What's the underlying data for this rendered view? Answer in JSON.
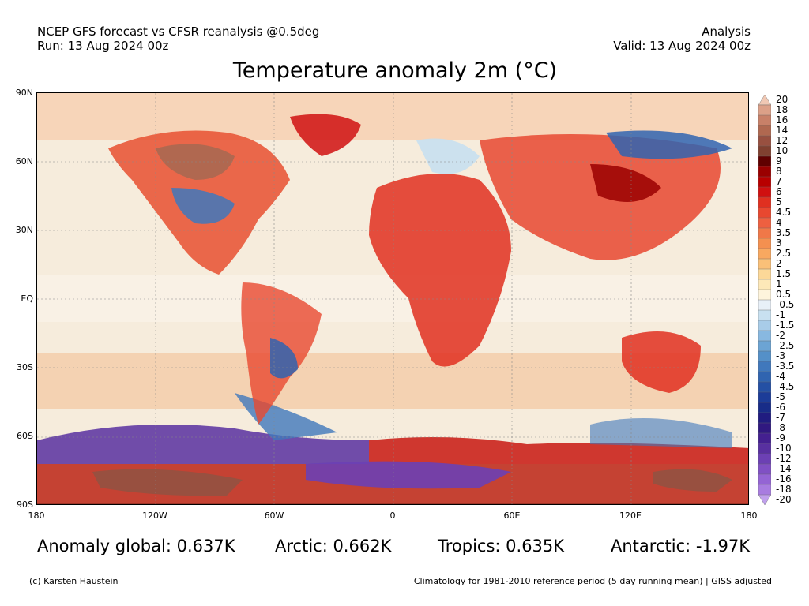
{
  "header": {
    "line1_left": "NCEP GFS forecast vs CFSR reanalysis @0.5deg",
    "line2_left": "Run: 13 Aug 2024 00z",
    "line1_right": "Analysis",
    "line2_right": "Valid: 13 Aug 2024 00z"
  },
  "title": "Temperature anomaly 2m (°C)",
  "map": {
    "lat_labels": [
      "90N",
      "60N",
      "30N",
      "EQ",
      "30S",
      "60S",
      "90S"
    ],
    "lon_labels": [
      "180",
      "120W",
      "60W",
      "0",
      "60E",
      "120E",
      "180"
    ]
  },
  "colorbar": {
    "labels": [
      "20",
      "18",
      "16",
      "14",
      "12",
      "10",
      "9",
      "8",
      "7",
      "6",
      "5",
      "4.5",
      "4",
      "3.5",
      "3",
      "2.5",
      "2",
      "1.5",
      "1",
      "0.5",
      "-0.5",
      "-1",
      "-1.5",
      "-2",
      "-2.5",
      "-3",
      "-3.5",
      "-4",
      "-4.5",
      "-5",
      "-6",
      "-7",
      "-8",
      "-9",
      "-10",
      "-12",
      "-14",
      "-16",
      "-18",
      "-20"
    ],
    "colors": [
      "#f0c8b4",
      "#dca088",
      "#c88068",
      "#b06850",
      "#985040",
      "#804030",
      "#600000",
      "#9a0000",
      "#b80000",
      "#d01010",
      "#e03020",
      "#e84830",
      "#ee6040",
      "#f07848",
      "#f49050",
      "#f8a860",
      "#fac078",
      "#fcd898",
      "#fde8b8",
      "#fef4dc",
      "#e8f0f8",
      "#c8e0f0",
      "#a8cce8",
      "#88b8e0",
      "#6ca4d4",
      "#5490c8",
      "#4078bc",
      "#3064b0",
      "#2450a4",
      "#1c3c98",
      "#182c88",
      "#201c80",
      "#301880",
      "#442090",
      "#5830a0",
      "#6c40b4",
      "#8050c4",
      "#9464d4",
      "#a87ce0",
      "#c0a0ec"
    ]
  },
  "stats": {
    "global": "Anomaly global: 0.637K",
    "arctic": "Arctic: 0.662K",
    "tropics": "Tropics: 0.635K",
    "antarctic": "Antarctic: -1.97K"
  },
  "footer": {
    "left": "(c) Karsten Haustein",
    "right": "Climatology for 1981-2010 reference period (5 day running mean) | GISS adjusted"
  }
}
